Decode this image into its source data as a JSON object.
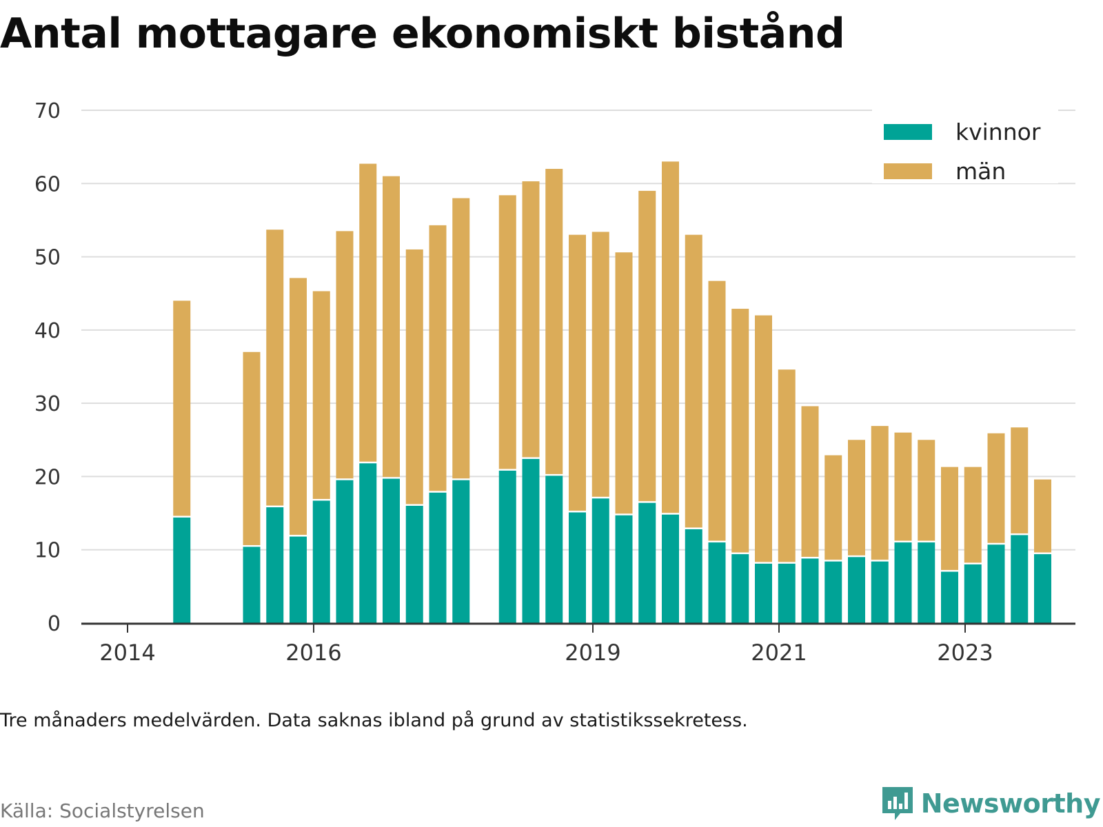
{
  "title": "Antal mottagare ekonomiskt bistånd",
  "note": "Tre månaders medelvärden. Data saknas ibland på grund av statistikssekretess.",
  "source": "Källa: Socialstyrelsen",
  "brand": {
    "name": "Newsworthy",
    "icon": "newsworthy-logo-icon"
  },
  "colors": {
    "kvinnor": "#00a396",
    "man": "#dbac59",
    "brand": "#3f9a92"
  },
  "chart_data": {
    "type": "bar",
    "stacked": true,
    "ylim": [
      0,
      70
    ],
    "yticks": [
      0,
      10,
      20,
      30,
      40,
      50,
      60,
      70
    ],
    "xticks": [
      {
        "label": "2014",
        "index": 0
      },
      {
        "label": "2016",
        "index": 8
      },
      {
        "label": "2019",
        "index": 20
      },
      {
        "label": "2021",
        "index": 28
      },
      {
        "label": "2023",
        "index": 36
      }
    ],
    "legend": {
      "position": "top-right"
    },
    "grid": true,
    "series": [
      {
        "name": "kvinnor",
        "values": [
          null,
          14.4,
          null,
          null,
          10.4,
          15.8,
          11.8,
          16.7,
          19.5,
          21.8,
          19.7,
          16.0,
          17.8,
          19.5,
          null,
          20.8,
          22.4,
          20.1,
          15.1,
          17.0,
          14.7,
          16.4,
          14.8,
          12.8,
          11.0,
          9.4,
          8.1,
          8.1,
          8.8,
          8.4,
          9.0,
          8.4,
          11.0,
          11.0,
          7.0,
          8.0,
          10.7,
          12.0,
          9.4
        ]
      },
      {
        "name": "män",
        "values": [
          null,
          29.6,
          null,
          null,
          26.6,
          37.9,
          35.3,
          28.6,
          34.0,
          40.9,
          41.3,
          35.0,
          36.5,
          38.5,
          null,
          37.6,
          37.9,
          41.9,
          37.9,
          36.4,
          35.9,
          42.6,
          48.2,
          40.2,
          35.7,
          33.5,
          33.9,
          26.5,
          20.8,
          14.5,
          16.0,
          18.5,
          15.0,
          14.0,
          14.3,
          13.3,
          15.2,
          14.7,
          10.2
        ]
      }
    ]
  }
}
